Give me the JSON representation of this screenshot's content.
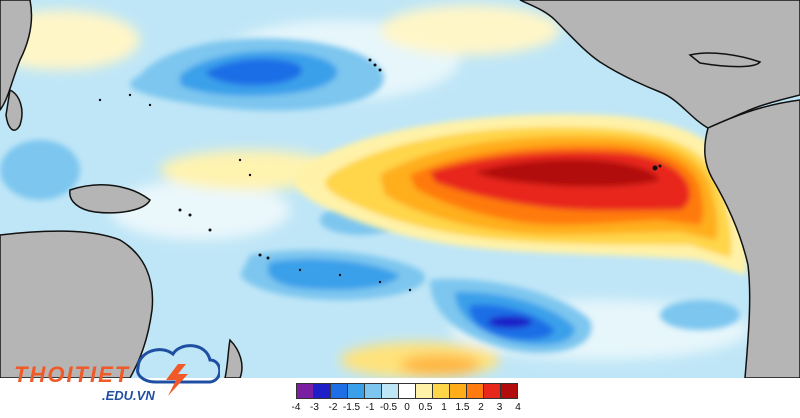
{
  "map": {
    "colors": {
      "ocean_base": "#bfe6f7",
      "land": "#b5b5b5",
      "coast": "#111111"
    }
  },
  "legend": {
    "colors": [
      "#7b1fa2",
      "#1f1fc8",
      "#1e6ee6",
      "#3aa0ea",
      "#7dc6ef",
      "#bfe6f7",
      "#ffffff",
      "#fff2a8",
      "#ffd54a",
      "#ffae1a",
      "#ff7a10",
      "#e8281a",
      "#b20c0c"
    ],
    "ticks": [
      "-4",
      "-3",
      "-2",
      "-1.5",
      "-1",
      "-0.5",
      "0",
      "0.5",
      "1",
      "1.5",
      "2",
      "3",
      "4"
    ]
  },
  "logo": {
    "name": "THOITIET",
    "domain": ".EDU.VN",
    "icon": "cloud-lightning-icon",
    "brand_orange": "#f05a28",
    "brand_blue": "#1f4fa3"
  }
}
